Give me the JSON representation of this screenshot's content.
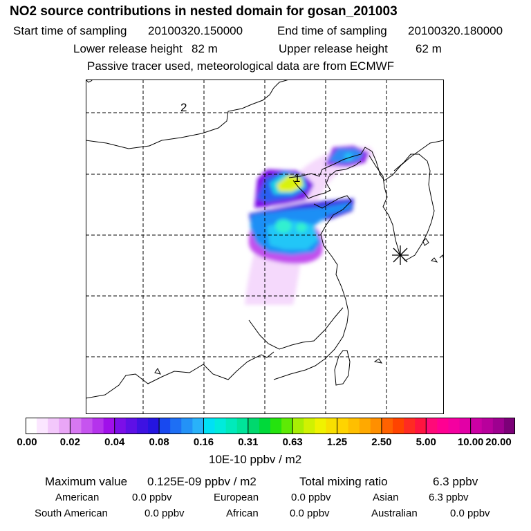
{
  "header": {
    "title": "NO2 source contributions in nested domain for gosan_201003",
    "start_label": "Start time of sampling",
    "start_value": "20100320.150000",
    "end_label": "End time of sampling",
    "end_value": "20100320.180000",
    "lower_label": "Lower release height",
    "lower_value": "82 m",
    "upper_label": "Upper release height",
    "upper_value": "62 m",
    "note": "Passive tracer used, meteorological data are from ECMWF"
  },
  "map": {
    "markers": [
      {
        "label": "2"
      },
      {
        "label": "1"
      }
    ],
    "receptor_icon": "asterisk-receptor-icon",
    "land_color": "#ffffff",
    "grid_color": "#000000"
  },
  "colorbar": {
    "ticks": [
      "0.00",
      "0.02",
      "0.04",
      "0.08",
      "0.16",
      "0.31",
      "0.63",
      "1.25",
      "2.50",
      "5.00",
      "10.00",
      "20.00"
    ],
    "colors": [
      "#ffffff",
      "#fbe6ff",
      "#f3c8fb",
      "#e9a6f6",
      "#d778f2",
      "#c654ef",
      "#b533ec",
      "#a010ea",
      "#7c0fe8",
      "#5e10e6",
      "#3e12e2",
      "#2415e0",
      "#1849f0",
      "#1e6ff4",
      "#2392f7",
      "#29b2f9",
      "#00e0f5",
      "#00ebdc",
      "#00eabb",
      "#00e49a",
      "#00d86e",
      "#00d93a",
      "#25e30e",
      "#5eea05",
      "#a8ee04",
      "#d0f102",
      "#f0f200",
      "#f8df00",
      "#ffd400",
      "#ffbf00",
      "#ffa900",
      "#ff8f00",
      "#ff6200",
      "#ff4400",
      "#ff2b22",
      "#ff1440",
      "#ff0a78",
      "#ff0092",
      "#f400a0",
      "#e200a6",
      "#cc00a4",
      "#b8009c",
      "#9e0090",
      "#7c0078"
    ],
    "units": "10E-10 ppbv / m2"
  },
  "summary": {
    "max_label": "Maximum value",
    "max_value": "0.125E-09 ppbv / m2",
    "total_label": "Total mixing ratio",
    "total_value": "6.3 ppbv",
    "regions": [
      {
        "name": "American",
        "value": "0.0 ppbv"
      },
      {
        "name": "European",
        "value": "0.0 ppbv"
      },
      {
        "name": "Asian",
        "value": "6.3 ppbv"
      },
      {
        "name": "South American",
        "value": "0.0 ppbv"
      },
      {
        "name": "African",
        "value": "0.0 ppbv"
      },
      {
        "name": "Australian",
        "value": "0.0 ppbv"
      }
    ]
  }
}
